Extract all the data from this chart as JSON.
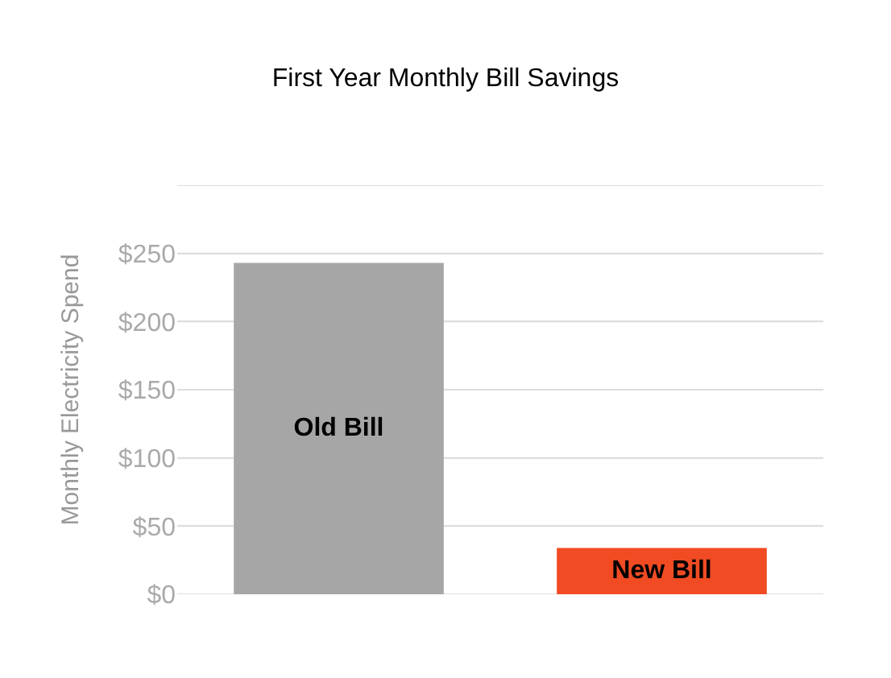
{
  "chart_data": {
    "type": "bar",
    "title": "First Year Monthly Bill Savings",
    "ylabel": "Monthly Electricity Spend",
    "categories": [
      "Old Bill",
      "New Bill"
    ],
    "values": [
      243,
      34
    ],
    "colors": [
      "#a6a6a6",
      "#f04b23"
    ],
    "ylim": [
      0,
      300
    ],
    "yticks": [
      {
        "value": 0,
        "label": "$0"
      },
      {
        "value": 50,
        "label": "$50"
      },
      {
        "value": 100,
        "label": "$100"
      },
      {
        "value": 150,
        "label": "$150"
      },
      {
        "value": 200,
        "label": "$200"
      },
      {
        "value": 250,
        "label": "$250"
      },
      {
        "value": 300,
        "label": null
      }
    ],
    "grid": "y",
    "legend": false
  }
}
